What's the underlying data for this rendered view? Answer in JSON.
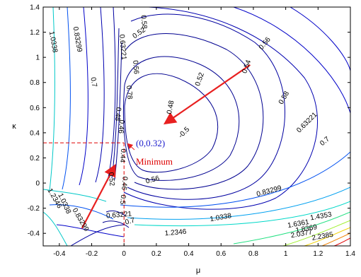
{
  "chart_data": {
    "type": "contour",
    "xlabel": "μ",
    "ylabel": "κ",
    "xlim": [
      -0.5,
      1.4
    ],
    "ylim": [
      -0.5,
      1.4
    ],
    "x_ticks": [
      "-0.4",
      "-0.2",
      "0",
      "0.2",
      "0.4",
      "0.6",
      "0.8",
      "1",
      "1.2",
      "1.4"
    ],
    "y_ticks": [
      "-0.4",
      "-0.2",
      "0",
      "0.2",
      "0.4",
      "0.6",
      "0.8",
      "1",
      "1.2",
      "1.4"
    ],
    "minimum": {
      "x": 0,
      "y": 0.32,
      "label": "(0,0.32)",
      "caption": "Minimum"
    },
    "reference_lines": {
      "x": 0,
      "y": 0.32,
      "color": "#e00000"
    },
    "arrows": [
      {
        "from": [
          0.78,
          0.94
        ],
        "to": [
          0.26,
          0.48
        ],
        "color": "#e82020"
      },
      {
        "from": [
          -0.26,
          -0.36
        ],
        "to": [
          -0.06,
          0.13
        ],
        "color": "#e82020"
      }
    ],
    "contour_labels": [
      {
        "text": "1.0338",
        "x": -0.45,
        "y": 1.12,
        "rot": 80
      },
      {
        "text": "0.83299",
        "x": -0.3,
        "y": 1.14,
        "rot": 80
      },
      {
        "text": "0.7",
        "x": -0.2,
        "y": 0.8,
        "rot": 80
      },
      {
        "text": "0.63221",
        "x": -0.02,
        "y": 1.08,
        "rot": 85
      },
      {
        "text": "0.58",
        "x": 0.11,
        "y": 1.28,
        "rot": 85
      },
      {
        "text": "0.56",
        "x": 0.06,
        "y": 0.92,
        "rot": 85
      },
      {
        "text": "0.78",
        "x": 0.02,
        "y": 0.72,
        "rot": 85
      },
      {
        "text": "0.52",
        "x": 0.1,
        "y": 1.18,
        "rot": -35
      },
      {
        "text": "0.56",
        "x": 0.88,
        "y": 1.1,
        "rot": -50
      },
      {
        "text": "0.54",
        "x": 0.77,
        "y": 0.92,
        "rot": -70
      },
      {
        "text": "0.52",
        "x": 0.48,
        "y": 0.82,
        "rot": -70
      },
      {
        "text": "0.48",
        "x": 0.3,
        "y": 0.6,
        "rot": -80
      },
      {
        "text": "-0.5",
        "x": 0.38,
        "y": 0.39,
        "rot": -45
      },
      {
        "text": "0.58",
        "x": 1.0,
        "y": 0.67,
        "rot": -60
      },
      {
        "text": "0.63221",
        "x": 1.14,
        "y": 0.47,
        "rot": -45
      },
      {
        "text": "0.7",
        "x": 1.25,
        "y": 0.32,
        "rot": -40
      },
      {
        "text": "0.83299",
        "x": 0.9,
        "y": -0.08,
        "rot": -15
      },
      {
        "text": "1.0338",
        "x": 0.6,
        "y": -0.29,
        "rot": -10
      },
      {
        "text": "1.2346",
        "x": 0.32,
        "y": -0.41,
        "rot": -5
      },
      {
        "text": "1.4353",
        "x": 1.22,
        "y": -0.28,
        "rot": -10
      },
      {
        "text": "1.6361",
        "x": 1.08,
        "y": -0.34,
        "rot": -10
      },
      {
        "text": "1.8369",
        "x": 1.13,
        "y": -0.38,
        "rot": -10
      },
      {
        "text": "2.0377",
        "x": 1.1,
        "y": -0.42,
        "rot": -10
      },
      {
        "text": "2.2385",
        "x": 1.23,
        "y": -0.44,
        "rot": -10
      },
      {
        "text": "0.56",
        "x": 0.18,
        "y": 0.01,
        "rot": -15
      },
      {
        "text": "0.44",
        "x": -0.02,
        "y": 0.22,
        "rot": 95
      },
      {
        "text": "0.46",
        "x": -0.03,
        "y": 0.45,
        "rot": 95
      },
      {
        "text": "0.48",
        "x": -0.05,
        "y": 0.55,
        "rot": 95
      },
      {
        "text": "0.52",
        "x": -0.09,
        "y": 0.03,
        "rot": 85
      },
      {
        "text": "0.46",
        "x": -0.01,
        "y": 0.0,
        "rot": 95
      },
      {
        "text": "0.5",
        "x": -0.02,
        "y": -0.13,
        "rot": 95
      },
      {
        "text": "0.63221",
        "x": -0.03,
        "y": -0.27,
        "rot": -5
      },
      {
        "text": "0.7",
        "x": 0.04,
        "y": -0.32,
        "rot": -15
      },
      {
        "text": "1.2346",
        "x": -0.44,
        "y": -0.13,
        "rot": 60
      },
      {
        "text": "1.0338",
        "x": -0.38,
        "y": -0.17,
        "rot": 65
      },
      {
        "text": "0.83299",
        "x": -0.28,
        "y": -0.3,
        "rot": 60
      }
    ]
  }
}
